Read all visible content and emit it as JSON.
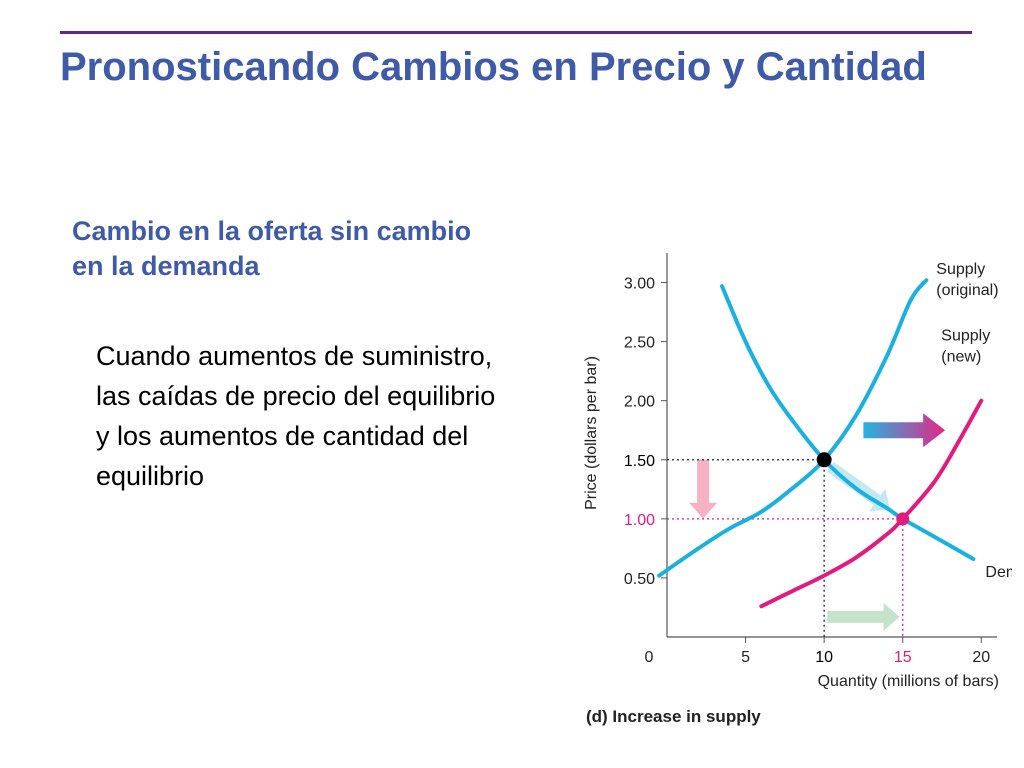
{
  "slide": {
    "title": "Pronosticando Cambios en Precio y Cantidad",
    "subtitle": "Cambio en la oferta sin cambio en la demanda",
    "body": "Cuando aumentos de suministro, las caídas de precio del equilibrio y los aumentos de cantidad del equilibrio"
  },
  "chart_data": {
    "type": "line",
    "title": "",
    "caption": "(d) Increase in supply",
    "xlabel": "Quantity (millions of bars)",
    "ylabel": "Price (dollars per bar)",
    "xlim": [
      0,
      21
    ],
    "ylim": [
      0,
      3.25
    ],
    "x_ticks": [
      0,
      5,
      10,
      15,
      20
    ],
    "y_ticks": [
      0.5,
      1.0,
      1.5,
      2.0,
      2.5,
      3.0
    ],
    "x_tick_labels": [
      "0",
      "5",
      "10",
      "15",
      "20"
    ],
    "y_tick_labels": [
      "0.50",
      "1.00",
      "1.50",
      "2.00",
      "2.50",
      "3.00"
    ],
    "grid": false,
    "series": [
      {
        "name": "Demand",
        "label_lines": [
          "Demand"
        ],
        "color": "#1ab0e0",
        "points": [
          [
            3.5,
            2.97
          ],
          [
            5,
            2.5
          ],
          [
            6.5,
            2.12
          ],
          [
            8,
            1.83
          ],
          [
            10,
            1.5
          ],
          [
            12,
            1.26
          ],
          [
            14,
            1.09
          ],
          [
            15,
            1.0
          ],
          [
            17,
            0.85
          ],
          [
            19.5,
            0.66
          ]
        ]
      },
      {
        "name": "Supply (original)",
        "label_lines": [
          "Supply",
          "(original)"
        ],
        "color": "#1ab0e0",
        "points": [
          [
            -0.5,
            0.52
          ],
          [
            2,
            0.75
          ],
          [
            4,
            0.92
          ],
          [
            6,
            1.06
          ],
          [
            8,
            1.26
          ],
          [
            10,
            1.5
          ],
          [
            12,
            1.87
          ],
          [
            14,
            2.38
          ],
          [
            15.5,
            2.85
          ],
          [
            16.5,
            3.02
          ]
        ]
      },
      {
        "name": "Supply (new)",
        "label_lines": [
          "Supply",
          "(new)"
        ],
        "color": "#e21b7f",
        "points": [
          [
            6,
            0.26
          ],
          [
            8,
            0.39
          ],
          [
            10,
            0.52
          ],
          [
            12,
            0.67
          ],
          [
            14,
            0.87
          ],
          [
            15,
            1.0
          ],
          [
            17,
            1.31
          ],
          [
            18.5,
            1.64
          ],
          [
            20,
            2.0
          ]
        ]
      }
    ],
    "equilibria": [
      {
        "x": 10,
        "y": 1.5,
        "color": "#000000",
        "label_color": "#000000"
      },
      {
        "x": 15,
        "y": 1.0,
        "color": "#e21b7f",
        "label_color": "#e21b7f"
      }
    ],
    "annotations": [
      {
        "name": "supply-shift-arrow",
        "from": [
          12.5,
          1.75
        ],
        "to": [
          17.7,
          1.75
        ],
        "colors": [
          "#1ab0e0",
          "#e21b7f"
        ]
      },
      {
        "name": "price-fall-arrow",
        "from": [
          2.3,
          1.5
        ],
        "to": [
          2.3,
          1.0
        ],
        "colors": [
          "#f5a8bf"
        ]
      },
      {
        "name": "quantity-rise-arrow",
        "from": [
          10.2,
          0.17
        ],
        "to": [
          14.8,
          0.17
        ],
        "colors": [
          "#bfe0c4"
        ]
      },
      {
        "name": "movement-along-demand-arrow",
        "from": [
          10.4,
          1.44
        ],
        "to": [
          14.2,
          1.08
        ],
        "colors": [
          "#bde6f4"
        ]
      }
    ]
  }
}
